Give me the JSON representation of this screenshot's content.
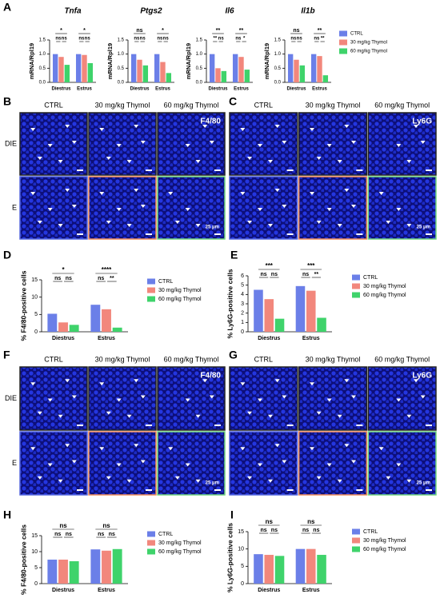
{
  "chart_data": [
    {
      "type": "bar",
      "panel": "A",
      "title": "Tnfa",
      "ylabel": "mRNA/Rpl19",
      "categories": [
        "Diestrus",
        "Estrus"
      ],
      "series": [
        {
          "color": "#6b7fe8",
          "values": [
            1.0,
            1.0
          ]
        },
        {
          "color": "#f2877c",
          "values": [
            0.9,
            0.97
          ]
        },
        {
          "color": "#3fd36b",
          "values": [
            0.62,
            0.68
          ]
        }
      ],
      "ylim": [
        0,
        1.5
      ],
      "yticks": [
        {
          "value": 0,
          "label": "0.0"
        },
        {
          "value": 0.5,
          "label": "0.5"
        },
        {
          "value": 1,
          "label": "1.0"
        },
        {
          "value": 1.5,
          "label": "1.5"
        }
      ],
      "significance": [
        {
          "top": "*",
          "pairs": [
            "ns",
            "ns"
          ]
        },
        {
          "top": "*",
          "pairs": [
            "ns",
            "ns"
          ]
        }
      ]
    },
    {
      "type": "bar",
      "title": "Ptgs2",
      "ylabel": "mRNA/Rpl19",
      "categories": [
        "Diestrus",
        "Estrus"
      ],
      "series": [
        {
          "color": "#6b7fe8",
          "values": [
            1.0,
            1.0
          ]
        },
        {
          "color": "#f2877c",
          "values": [
            0.8,
            0.72
          ]
        },
        {
          "color": "#3fd36b",
          "values": [
            0.6,
            0.33
          ]
        }
      ],
      "ylim": [
        0,
        1.5
      ],
      "yticks": [
        {
          "value": 0,
          "label": "0.0"
        },
        {
          "value": 0.5,
          "label": "0.5"
        },
        {
          "value": 1,
          "label": "1.0"
        },
        {
          "value": 1.5,
          "label": "1.5"
        }
      ],
      "significance": [
        {
          "top": "ns",
          "pairs": [
            "ns",
            "ns"
          ]
        },
        {
          "top": "*",
          "pairs": [
            "ns",
            "ns"
          ]
        }
      ]
    },
    {
      "type": "bar",
      "title": "Il6",
      "ylabel": "mRNA/Rpl19",
      "categories": [
        "Diestrus",
        "Estrus"
      ],
      "series": [
        {
          "color": "#6b7fe8",
          "values": [
            1.0,
            1.0
          ]
        },
        {
          "color": "#f2877c",
          "values": [
            0.5,
            0.9
          ]
        },
        {
          "color": "#3fd36b",
          "values": [
            0.4,
            0.45
          ]
        }
      ],
      "ylim": [
        0,
        1.5
      ],
      "yticks": [
        {
          "value": 0,
          "label": "0.0"
        },
        {
          "value": 0.5,
          "label": "0.5"
        },
        {
          "value": 1,
          "label": "1.0"
        },
        {
          "value": 1.5,
          "label": "1.5"
        }
      ],
      "significance": [
        {
          "top": "**",
          "pairs": [
            "**",
            "ns"
          ]
        },
        {
          "top": "**",
          "pairs": [
            "ns",
            "*"
          ]
        }
      ]
    },
    {
      "type": "bar",
      "title": "Il1b",
      "ylabel": "mRNA/Rpl19",
      "categories": [
        "Diestrus",
        "Estrus"
      ],
      "legend": "right",
      "series": [
        {
          "name": "CTRL",
          "color": "#6b7fe8",
          "values": [
            1.0,
            1.0
          ]
        },
        {
          "name": "30 mg/kg Thymol",
          "color": "#f2877c",
          "values": [
            0.8,
            0.93
          ]
        },
        {
          "name": "60 mg/kg Thymol",
          "color": "#3fd36b",
          "values": [
            0.6,
            0.25
          ]
        }
      ],
      "ylim": [
        0,
        1.5
      ],
      "yticks": [
        {
          "value": 0,
          "label": "0.0"
        },
        {
          "value": 0.5,
          "label": "0.5"
        },
        {
          "value": 1,
          "label": "1.0"
        },
        {
          "value": 1.5,
          "label": "1.5"
        }
      ],
      "significance": [
        {
          "top": "ns",
          "pairs": [
            "ns",
            "ns"
          ]
        },
        {
          "top": "**",
          "pairs": [
            "ns",
            "**"
          ]
        }
      ]
    },
    {
      "type": "bar",
      "panel": "D",
      "ylabel": "% F4/80-positive cells",
      "categories": [
        "Diestrus",
        "Estrus"
      ],
      "legend": "right",
      "series": [
        {
          "name": "CTRL",
          "color": "#6b7fe8",
          "values": [
            5.2,
            7.8
          ]
        },
        {
          "name": "30 mg/kg Thymol",
          "color": "#f2877c",
          "values": [
            2.7,
            6.5
          ]
        },
        {
          "name": "60 mg/kg Thymol",
          "color": "#3fd36b",
          "values": [
            2.0,
            1.2
          ]
        }
      ],
      "ylim": [
        0,
        15
      ],
      "yticks": [
        0,
        5,
        10,
        15
      ],
      "significance": [
        {
          "top": "*",
          "pairs": [
            "ns",
            "ns"
          ]
        },
        {
          "top": "****",
          "pairs": [
            "ns",
            "**"
          ]
        }
      ]
    },
    {
      "type": "bar",
      "panel": "E",
      "ylabel": "% Ly6G-positive cells",
      "categories": [
        "Diestrus",
        "Estrus"
      ],
      "legend": "right",
      "series": [
        {
          "name": "CTRL",
          "color": "#6b7fe8",
          "values": [
            4.5,
            4.9
          ]
        },
        {
          "name": "30 mg/kg Thymol",
          "color": "#f2877c",
          "values": [
            3.5,
            4.4
          ]
        },
        {
          "name": "60 mg/kg Thymol",
          "color": "#3fd36b",
          "values": [
            1.4,
            1.5
          ]
        }
      ],
      "ylim": [
        0,
        6
      ],
      "yticks": [
        0,
        1,
        2,
        3,
        4,
        5,
        6
      ],
      "significance": [
        {
          "top": "***",
          "pairs": [
            "ns",
            "ns"
          ]
        },
        {
          "top": "***",
          "pairs": [
            "ns",
            "**"
          ]
        }
      ]
    },
    {
      "type": "bar",
      "panel": "H",
      "ylabel": "% F4/80-positive cells",
      "categories": [
        "Diestrus",
        "Estrus"
      ],
      "legend": "right",
      "series": [
        {
          "name": "CTRL",
          "color": "#6b7fe8",
          "values": [
            7.5,
            10.7
          ]
        },
        {
          "name": "30 mg/kg Thymol",
          "color": "#f2877c",
          "values": [
            7.5,
            10.3
          ]
        },
        {
          "name": "60 mg/kg Thymol",
          "color": "#3fd36b",
          "values": [
            7.0,
            10.8
          ]
        }
      ],
      "ylim": [
        0,
        15
      ],
      "yticks": [
        0,
        5,
        10,
        15
      ],
      "significance": [
        {
          "top": "ns",
          "pairs": [
            "ns",
            "ns"
          ]
        },
        {
          "top": "ns",
          "pairs": [
            "ns",
            "ns"
          ]
        }
      ]
    },
    {
      "type": "bar",
      "panel": "I",
      "ylabel": "% Ly6G-positive cells",
      "categories": [
        "Diestrus",
        "Estrus"
      ],
      "legend": "right",
      "series": [
        {
          "name": "CTRL",
          "color": "#6b7fe8",
          "values": [
            8.5,
            10.0
          ]
        },
        {
          "name": "30 mg/kg Thymol",
          "color": "#f2877c",
          "values": [
            8.3,
            10.0
          ]
        },
        {
          "name": "60 mg/kg Thymol",
          "color": "#3fd36b",
          "values": [
            8.0,
            8.3
          ]
        }
      ],
      "ylim": [
        0,
        15
      ],
      "yticks": [
        0,
        5,
        10,
        15
      ],
      "significance": [
        {
          "top": "ns",
          "pairs": [
            "ns",
            "ns"
          ]
        },
        {
          "top": "ns",
          "pairs": [
            "ns",
            "ns"
          ]
        }
      ]
    }
  ],
  "image_panels": [
    {
      "panel": "B",
      "columns": [
        "CTRL",
        "30 mg/kg Thymol",
        "60 mg/kg Thymol"
      ],
      "rows": [
        "DIE",
        "E"
      ],
      "marker": "F4/80",
      "scale": "25 μm"
    },
    {
      "panel": "C",
      "columns": [
        "CTRL",
        "30 mg/kg Thymol",
        "60 mg/kg Thymol"
      ],
      "marker": "Ly6G",
      "scale": "25 μm"
    },
    {
      "panel": "F",
      "columns": [
        "CTRL",
        "30 mg/kg Thymol",
        "60 mg/kg Thymol"
      ],
      "rows": [
        "DIE",
        "E"
      ],
      "marker": "F4/80",
      "scale": "25 μm"
    },
    {
      "panel": "G",
      "columns": [
        "CTRL",
        "30 mg/kg Thymol",
        "60 mg/kg Thymol"
      ],
      "marker": "Ly6G",
      "scale": "25 μm"
    }
  ]
}
